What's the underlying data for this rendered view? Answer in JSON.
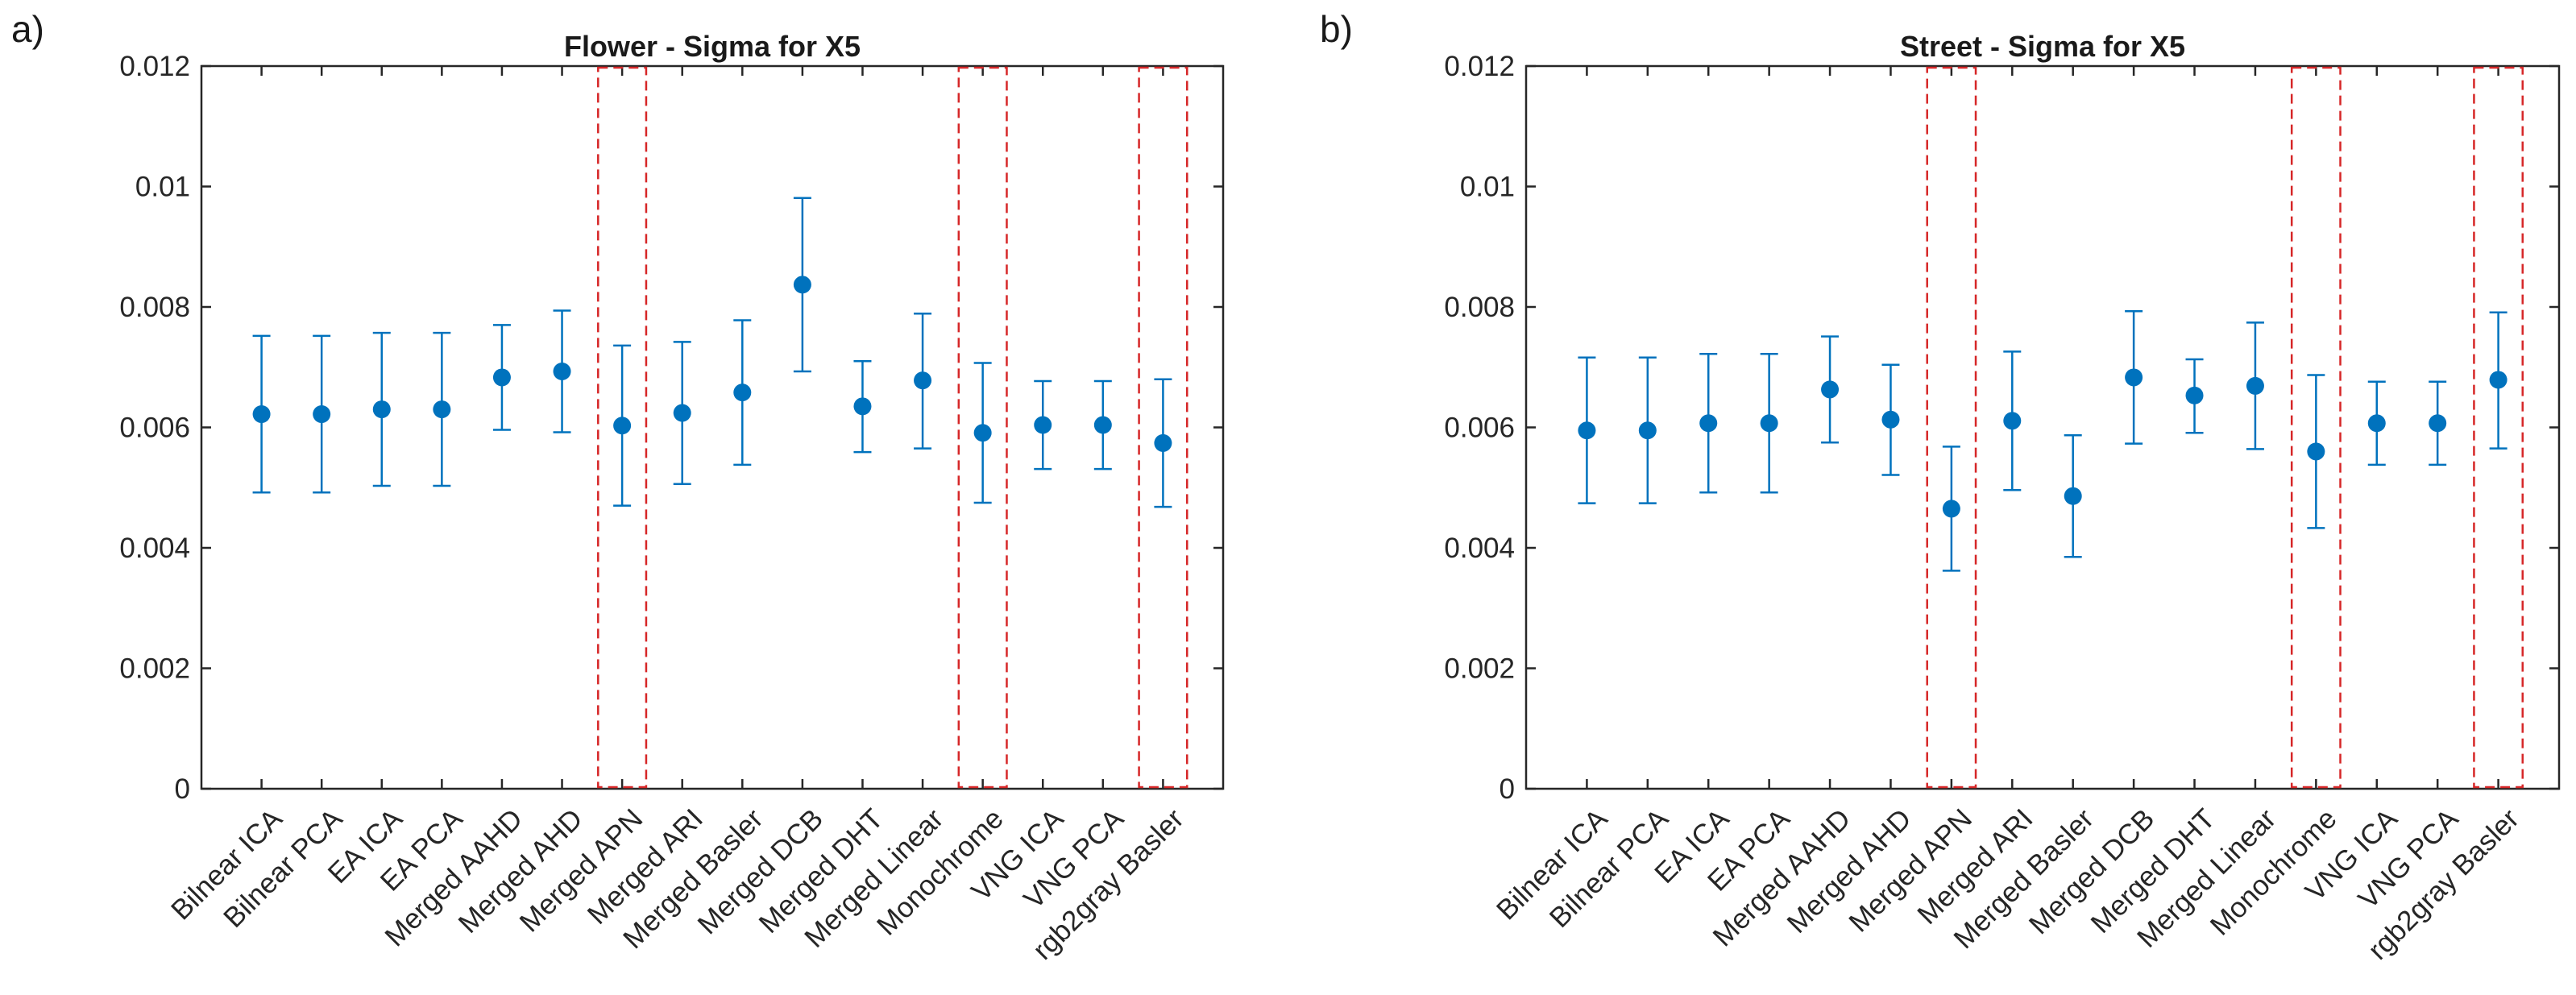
{
  "chart_data": [
    {
      "type": "errorbar",
      "panel_label": "a)",
      "title": "Flower - Sigma for X5",
      "xlabel": "",
      "ylabel": "",
      "ylim": [
        0,
        0.012
      ],
      "yticks": [
        0,
        0.002,
        0.004,
        0.006,
        0.008,
        0.01,
        0.012
      ],
      "ytick_labels": [
        "0",
        "0.002",
        "0.004",
        "0.006",
        "0.008",
        "0.01",
        "0.012"
      ],
      "categories": [
        "Bilnear ICA",
        "Bilnear PCA",
        "EA ICA",
        "EA PCA",
        "Merged AAHD",
        "Merged AHD",
        "Merged APN",
        "Merged ARI",
        "Merged Basler",
        "Merged DCB",
        "Merged DHT",
        "Merged Linear",
        "Monochrome",
        "VNG ICA",
        "VNG PCA",
        "rgb2gray Basler"
      ],
      "values": [
        0.00622,
        0.00622,
        0.0063,
        0.0063,
        0.00683,
        0.00693,
        0.00603,
        0.00624,
        0.00658,
        0.00837,
        0.00635,
        0.00678,
        0.00591,
        0.00604,
        0.00604,
        0.00574
      ],
      "lower": [
        0.00492,
        0.00492,
        0.00503,
        0.00503,
        0.00596,
        0.00592,
        0.0047,
        0.00506,
        0.00538,
        0.00693,
        0.00559,
        0.00565,
        0.00475,
        0.00531,
        0.00531,
        0.00468
      ],
      "upper": [
        0.00752,
        0.00752,
        0.00757,
        0.00757,
        0.0077,
        0.00794,
        0.00736,
        0.00742,
        0.00778,
        0.00981,
        0.0071,
        0.00789,
        0.00707,
        0.00677,
        0.00677,
        0.0068
      ],
      "highlighted_categories": [
        "Merged APN",
        "Monochrome",
        "rgb2gray Basler"
      ],
      "colors": {
        "series": "#0072BD",
        "highlight": "#d62728"
      }
    },
    {
      "type": "errorbar",
      "panel_label": "b)",
      "title": "Street - Sigma for X5",
      "xlabel": "",
      "ylabel": "",
      "ylim": [
        0,
        0.012
      ],
      "yticks": [
        0,
        0.002,
        0.004,
        0.006,
        0.008,
        0.01,
        0.012
      ],
      "ytick_labels": [
        "0",
        "0.002",
        "0.004",
        "0.006",
        "0.008",
        "0.01",
        "0.012"
      ],
      "categories": [
        "Bilnear ICA",
        "Bilnear PCA",
        "EA ICA",
        "EA PCA",
        "Merged AAHD",
        "Merged AHD",
        "Merged APN",
        "Merged ARI",
        "Merged Basler",
        "Merged DCB",
        "Merged DHT",
        "Merged Linear",
        "Monochrome",
        "VNG ICA",
        "VNG PCA",
        "rgb2gray Basler"
      ],
      "values": [
        0.00595,
        0.00595,
        0.00607,
        0.00607,
        0.00663,
        0.00613,
        0.00465,
        0.00611,
        0.00486,
        0.00683,
        0.00653,
        0.00669,
        0.0056,
        0.00607,
        0.00607,
        0.00679
      ],
      "lower": [
        0.00474,
        0.00474,
        0.00492,
        0.00492,
        0.00575,
        0.00521,
        0.00362,
        0.00496,
        0.00385,
        0.00573,
        0.00591,
        0.00564,
        0.00433,
        0.00538,
        0.00538,
        0.00565
      ],
      "upper": [
        0.00716,
        0.00716,
        0.00722,
        0.00722,
        0.00751,
        0.00704,
        0.00568,
        0.00726,
        0.00587,
        0.00793,
        0.00713,
        0.00774,
        0.00687,
        0.00676,
        0.00676,
        0.00791
      ],
      "highlighted_categories": [
        "Merged APN",
        "Monochrome",
        "rgb2gray Basler"
      ],
      "colors": {
        "series": "#0072BD",
        "highlight": "#d62728"
      }
    }
  ]
}
